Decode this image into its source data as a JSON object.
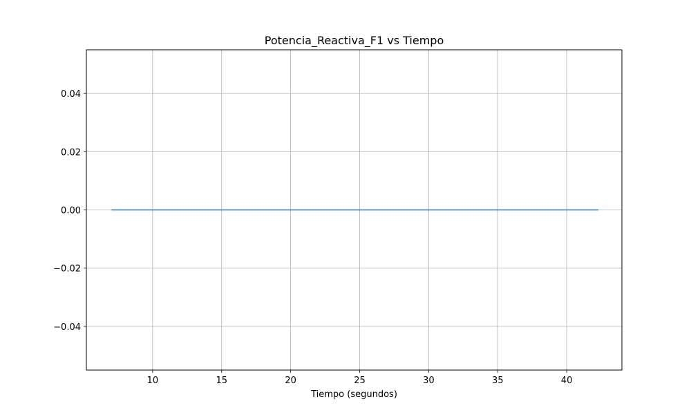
{
  "chart_data": {
    "type": "line",
    "title": "Potencia_Reactiva_F1 vs Tiempo",
    "xlabel": "Tiempo (segundos)",
    "ylabel": "",
    "xlim": [
      5.2,
      44.0
    ],
    "ylim": [
      -0.055,
      0.055
    ],
    "xticks": [
      10,
      15,
      20,
      25,
      30,
      35,
      40
    ],
    "xtick_labels": [
      "10",
      "15",
      "20",
      "25",
      "30",
      "35",
      "40"
    ],
    "yticks": [
      -0.04,
      -0.02,
      0.0,
      0.02,
      0.04
    ],
    "ytick_labels": [
      "−0.04",
      "−0.02",
      "0.00",
      "0.02",
      "0.04"
    ],
    "grid": true,
    "series": [
      {
        "color": "#1f77b4",
        "x": [
          7.0,
          42.3
        ],
        "y": [
          0.0,
          0.0
        ]
      }
    ]
  }
}
